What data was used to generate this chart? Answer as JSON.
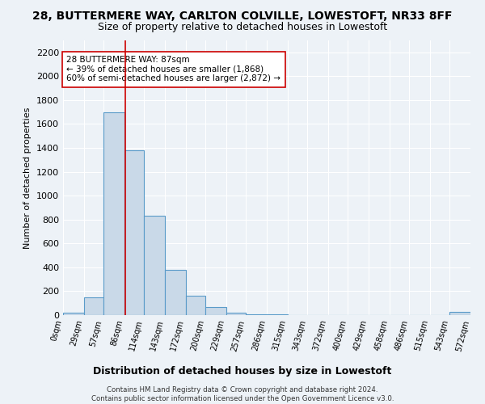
{
  "title": "28, BUTTERMERE WAY, CARLTON COLVILLE, LOWESTOFT, NR33 8FF",
  "subtitle": "Size of property relative to detached houses in Lowestoft",
  "xlabel": "Distribution of detached houses by size in Lowestoft",
  "ylabel": "Number of detached properties",
  "bin_edges": [
    0,
    29,
    57,
    86,
    114,
    143,
    172,
    200,
    229,
    257,
    286,
    315,
    343,
    372,
    400,
    429,
    458,
    486,
    515,
    543,
    572
  ],
  "bar_heights": [
    20,
    150,
    1700,
    1380,
    830,
    380,
    160,
    70,
    20,
    10,
    5,
    3,
    2,
    2,
    1,
    1,
    1,
    1,
    1,
    25
  ],
  "bar_facecolor": "#c9d9e8",
  "bar_edgecolor": "#5a9bc9",
  "property_size": 87,
  "vline_color": "#cc0000",
  "annotation_text": "28 BUTTERMERE WAY: 87sqm\n← 39% of detached houses are smaller (1,868)\n60% of semi-detached houses are larger (2,872) →",
  "annotation_box_edgecolor": "#cc0000",
  "annotation_box_facecolor": "#ffffff",
  "ylim": [
    0,
    2300
  ],
  "yticks": [
    0,
    200,
    400,
    600,
    800,
    1000,
    1200,
    1400,
    1600,
    1800,
    2000,
    2200
  ],
  "footer_line1": "Contains HM Land Registry data © Crown copyright and database right 2024.",
  "footer_line2": "Contains public sector information licensed under the Open Government Licence v3.0.",
  "bg_color": "#edf2f7",
  "grid_color": "#ffffff",
  "title_fontsize": 10,
  "subtitle_fontsize": 9
}
